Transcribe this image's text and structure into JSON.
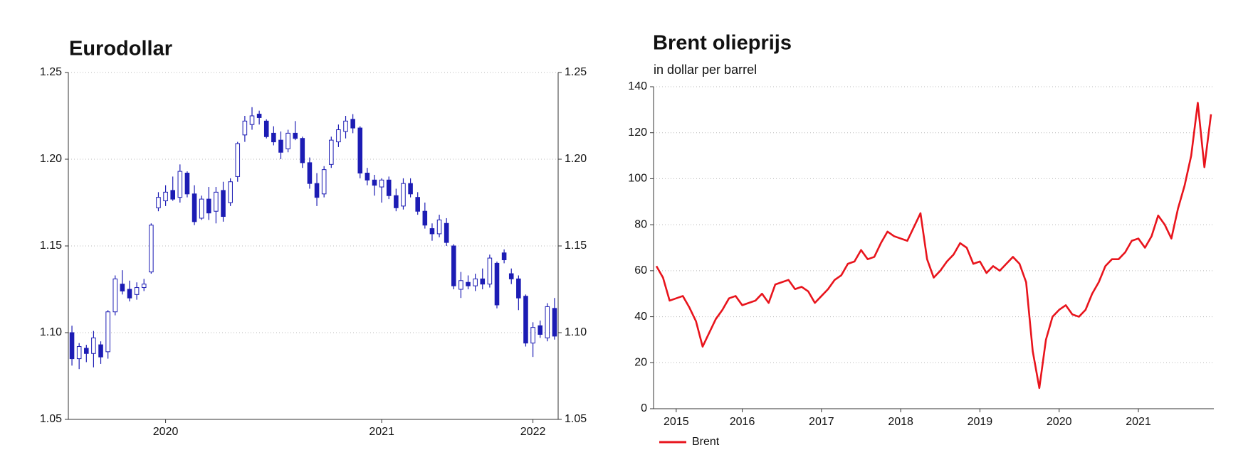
{
  "chart_data": [
    {
      "type": "candlestick",
      "title": "Eurodollar",
      "color": "#1c1cb4",
      "categories": [
        null,
        null,
        null,
        null,
        null,
        null,
        null,
        null,
        null,
        null,
        null,
        null,
        null,
        "2020",
        null,
        null,
        null,
        null,
        null,
        null,
        null,
        null,
        null,
        null,
        null,
        null,
        null,
        null,
        null,
        null,
        null,
        null,
        null,
        null,
        null,
        null,
        null,
        null,
        null,
        null,
        null,
        null,
        null,
        "2021",
        null,
        null,
        null,
        null,
        null,
        null,
        null,
        null,
        null,
        null,
        null,
        null,
        null,
        null,
        null,
        null,
        null,
        null,
        null,
        null,
        "2022",
        null,
        null,
        null
      ],
      "open": [
        1.1,
        1.085,
        1.091,
        1.088,
        1.093,
        1.089,
        1.112,
        1.128,
        1.125,
        1.122,
        1.126,
        1.135,
        1.172,
        1.176,
        1.182,
        1.178,
        1.192,
        1.18,
        1.166,
        1.177,
        1.17,
        1.182,
        1.175,
        1.19,
        1.214,
        1.22,
        1.226,
        1.222,
        1.215,
        1.211,
        1.206,
        1.215,
        1.212,
        1.198,
        1.186,
        1.18,
        1.197,
        1.21,
        1.216,
        1.223,
        1.218,
        1.192,
        1.188,
        1.184,
        1.188,
        1.179,
        1.173,
        1.186,
        1.178,
        1.17,
        1.16,
        1.157,
        1.163,
        1.15,
        1.125,
        1.129,
        1.127,
        1.131,
        1.128,
        1.14,
        1.146,
        1.134,
        1.131,
        1.121,
        1.094,
        1.104,
        1.097,
        1.114
      ],
      "high": [
        1.104,
        1.094,
        1.093,
        1.101,
        1.095,
        1.113,
        1.133,
        1.136,
        1.13,
        1.129,
        1.131,
        1.163,
        1.181,
        1.185,
        1.19,
        1.197,
        1.193,
        1.185,
        1.179,
        1.184,
        1.184,
        1.187,
        1.189,
        1.21,
        1.225,
        1.23,
        1.228,
        1.223,
        1.219,
        1.216,
        1.217,
        1.222,
        1.213,
        1.201,
        1.192,
        1.196,
        1.213,
        1.22,
        1.225,
        1.226,
        1.219,
        1.195,
        1.191,
        1.189,
        1.19,
        1.183,
        1.189,
        1.189,
        1.181,
        1.175,
        1.163,
        1.168,
        1.166,
        1.151,
        1.135,
        1.133,
        1.134,
        1.137,
        1.145,
        1.141,
        1.148,
        1.137,
        1.133,
        1.122,
        1.106,
        1.107,
        1.117,
        1.12
      ],
      "low": [
        1.081,
        1.079,
        1.083,
        1.08,
        1.082,
        1.085,
        1.11,
        1.122,
        1.118,
        1.119,
        1.124,
        1.134,
        1.17,
        1.173,
        1.176,
        1.175,
        1.178,
        1.162,
        1.165,
        1.165,
        1.163,
        1.164,
        1.173,
        1.187,
        1.21,
        1.217,
        1.22,
        1.212,
        1.208,
        1.2,
        1.204,
        1.211,
        1.195,
        1.183,
        1.173,
        1.178,
        1.195,
        1.207,
        1.212,
        1.215,
        1.189,
        1.185,
        1.179,
        1.175,
        1.177,
        1.17,
        1.171,
        1.178,
        1.168,
        1.16,
        1.153,
        1.155,
        1.15,
        1.125,
        1.12,
        1.125,
        1.124,
        1.125,
        1.126,
        1.114,
        1.14,
        1.128,
        1.113,
        1.092,
        1.086,
        1.097,
        1.095,
        1.096
      ],
      "close": [
        1.085,
        1.092,
        1.088,
        1.097,
        1.086,
        1.112,
        1.131,
        1.124,
        1.12,
        1.126,
        1.128,
        1.162,
        1.178,
        1.181,
        1.177,
        1.193,
        1.18,
        1.164,
        1.177,
        1.169,
        1.181,
        1.167,
        1.187,
        1.209,
        1.222,
        1.225,
        1.224,
        1.213,
        1.21,
        1.204,
        1.215,
        1.212,
        1.198,
        1.186,
        1.178,
        1.194,
        1.211,
        1.217,
        1.222,
        1.218,
        1.192,
        1.188,
        1.185,
        1.188,
        1.179,
        1.172,
        1.186,
        1.18,
        1.17,
        1.162,
        1.157,
        1.165,
        1.152,
        1.127,
        1.13,
        1.127,
        1.131,
        1.128,
        1.143,
        1.116,
        1.142,
        1.131,
        1.12,
        1.094,
        1.103,
        1.099,
        1.115,
        1.098
      ],
      "ylim": [
        1.05,
        1.25
      ],
      "yticks": [
        1.05,
        {
          "value": 1.1,
          "label": "1.10"
        },
        1.15,
        {
          "value": 1.2,
          "label": "1.20"
        },
        1.25
      ],
      "grid": true
    },
    {
      "type": "line",
      "title": "Brent olieprijs",
      "subtitle": "in dollar per barrel",
      "categories": [
        null,
        null,
        null,
        "2015",
        null,
        null,
        null,
        null,
        null,
        null,
        null,
        null,
        null,
        "2016",
        null,
        null,
        null,
        null,
        null,
        null,
        null,
        null,
        null,
        null,
        null,
        "2017",
        null,
        null,
        null,
        null,
        null,
        null,
        null,
        null,
        null,
        null,
        null,
        "2018",
        null,
        null,
        null,
        null,
        null,
        null,
        null,
        null,
        null,
        null,
        null,
        "2019",
        null,
        null,
        null,
        null,
        null,
        null,
        null,
        null,
        null,
        null,
        null,
        "2020",
        null,
        null,
        null,
        null,
        null,
        null,
        null,
        null,
        null,
        null,
        null,
        "2021",
        null,
        null,
        null,
        null,
        null,
        null,
        null,
        null,
        null,
        null,
        null
      ],
      "series": [
        {
          "name": "Brent",
          "color": "#e8141c",
          "values": [
            62,
            57,
            47,
            48,
            49,
            44,
            38,
            27,
            33,
            39,
            43,
            48,
            49,
            45,
            46,
            47,
            50,
            46,
            54,
            55,
            56,
            52,
            53,
            51,
            46,
            49,
            52,
            56,
            58,
            63,
            64,
            69,
            65,
            66,
            72,
            77,
            75,
            74,
            73,
            79,
            85,
            65,
            57,
            60,
            64,
            67,
            72,
            70,
            63,
            64,
            59,
            62,
            60,
            63,
            66,
            63,
            55,
            25,
            9,
            30,
            40,
            43,
            45,
            41,
            40,
            43,
            50,
            55,
            62,
            65,
            65,
            68,
            73,
            74,
            70,
            75,
            84,
            80,
            74,
            87,
            97,
            110,
            133,
            105,
            128
          ]
        }
      ],
      "ylim": [
        0,
        140
      ],
      "yticks": [
        0,
        20,
        40,
        60,
        80,
        100,
        120,
        140
      ],
      "grid": true,
      "legend": "bottom-left"
    }
  ]
}
